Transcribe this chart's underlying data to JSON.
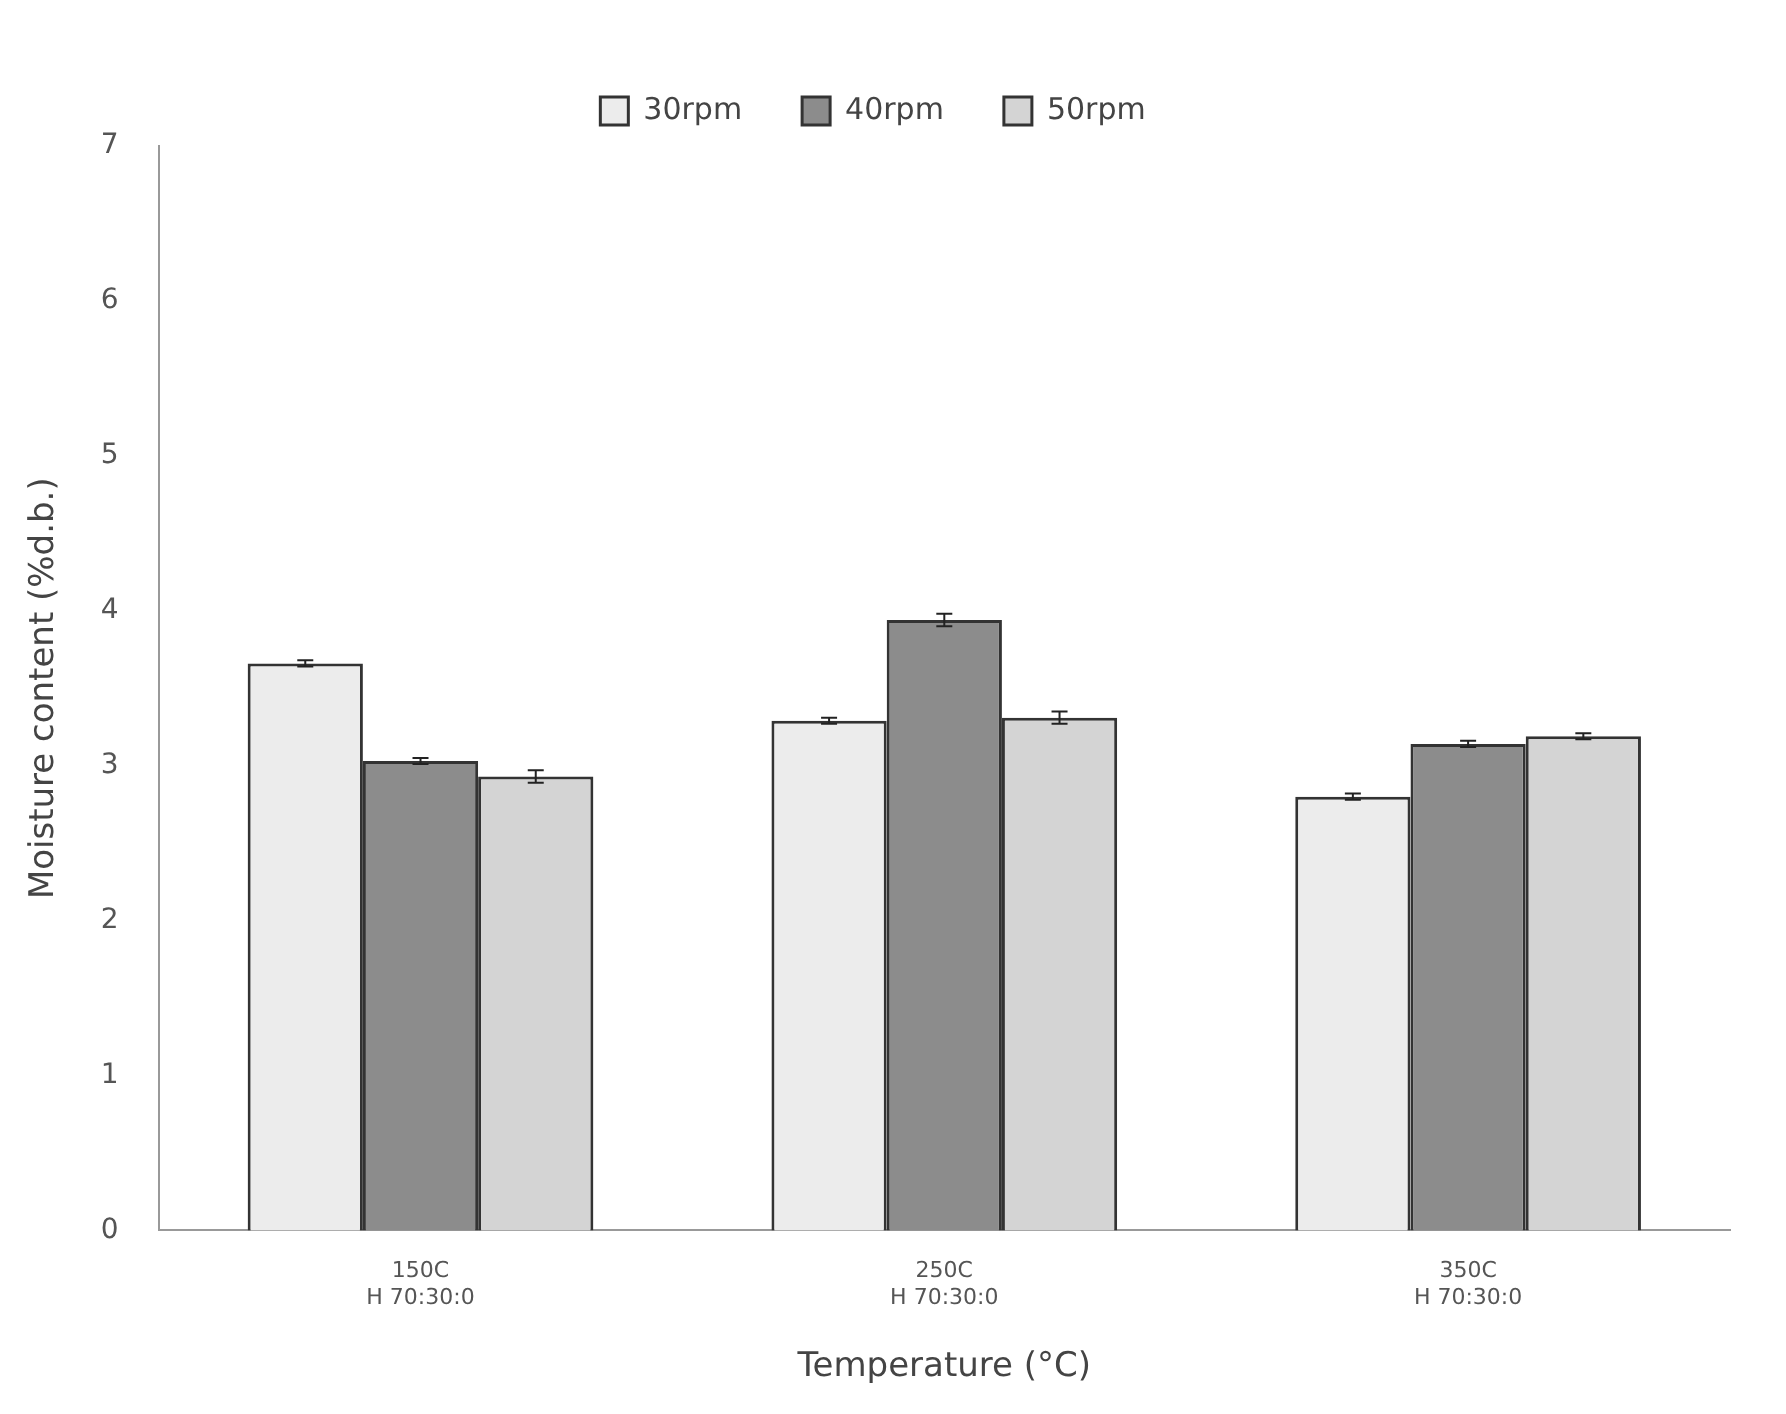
{
  "chart_data": {
    "type": "bar",
    "xlabel": "Temperature (°C)",
    "ylabel": "Moisture content (%d.b.)",
    "categories": [
      "150C\nH 70:30:0",
      "250C\nH 70:30:0",
      "350C\nH 70:30:0"
    ],
    "series": [
      {
        "name": "30rpm",
        "color": "#ececec",
        "values": [
          3.66,
          3.29,
          2.8
        ],
        "errors": [
          0.02,
          0.02,
          0.02
        ]
      },
      {
        "name": "40rpm",
        "color": "#8c8c8c",
        "values": [
          3.03,
          3.94,
          3.14
        ],
        "errors": [
          0.02,
          0.04,
          0.02
        ]
      },
      {
        "name": "50rpm",
        "color": "#d4d4d4",
        "values": [
          2.93,
          3.31,
          3.19
        ],
        "errors": [
          0.04,
          0.04,
          0.02
        ]
      }
    ],
    "ylim": [
      0,
      7
    ],
    "yticks": [
      0,
      1,
      2,
      3,
      4,
      5,
      6,
      7
    ],
    "grid": false,
    "legend": "top"
  }
}
